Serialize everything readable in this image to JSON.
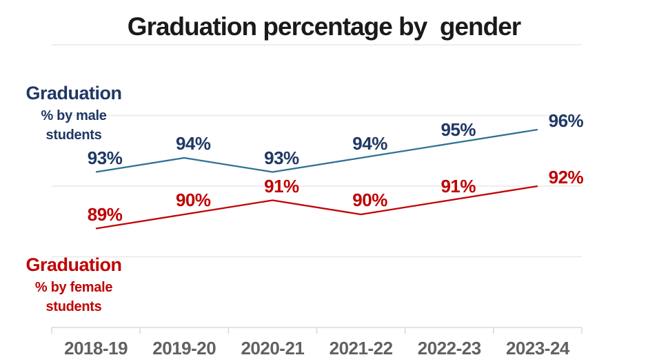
{
  "title": "Graduation percentage by  gender",
  "colors": {
    "title_text": "#1a1a1a",
    "male_line": "#2e7194",
    "male_label_text": "#1f3864",
    "female_line": "#c40000",
    "female_label_text": "#c00000",
    "axis_tick_text": "#616161",
    "gridline": "#e8e8e8",
    "axis_line": "#dadada"
  },
  "chart_data": {
    "type": "line",
    "title": "Graduation percentage by  gender",
    "categories": [
      "2018-19",
      "2019-20",
      "2020-21",
      "2021-22",
      "2022-23",
      "2023-24"
    ],
    "series": [
      {
        "name": "Graduation % by male students",
        "color": "#2e7194",
        "label_color": "#1f3864",
        "values": [
          93,
          94,
          93,
          94,
          95,
          96
        ],
        "point_labels": [
          "93%",
          "94%",
          "93%",
          "94%",
          "95%",
          "96%"
        ]
      },
      {
        "name": "Graduation % by female students",
        "color": "#c40000",
        "label_color": "#c00000",
        "values": [
          89,
          90,
          91,
          90,
          91,
          92
        ],
        "point_labels": [
          "89%",
          "90%",
          "91%",
          "90%",
          "91%",
          "92%"
        ]
      }
    ],
    "xlabel": "",
    "ylabel": "",
    "ylim": [
      82,
      102
    ],
    "gridline_values": [
      102,
      97,
      92,
      87
    ],
    "grid": "horizontal",
    "legend_position": "left-annotations",
    "data_labels": "on"
  },
  "annotations": {
    "male": {
      "line1": "Graduation",
      "line2": "% by male",
      "line3": "students"
    },
    "female": {
      "line1": "Graduation",
      "line2": "% by female",
      "line3": "students"
    }
  }
}
